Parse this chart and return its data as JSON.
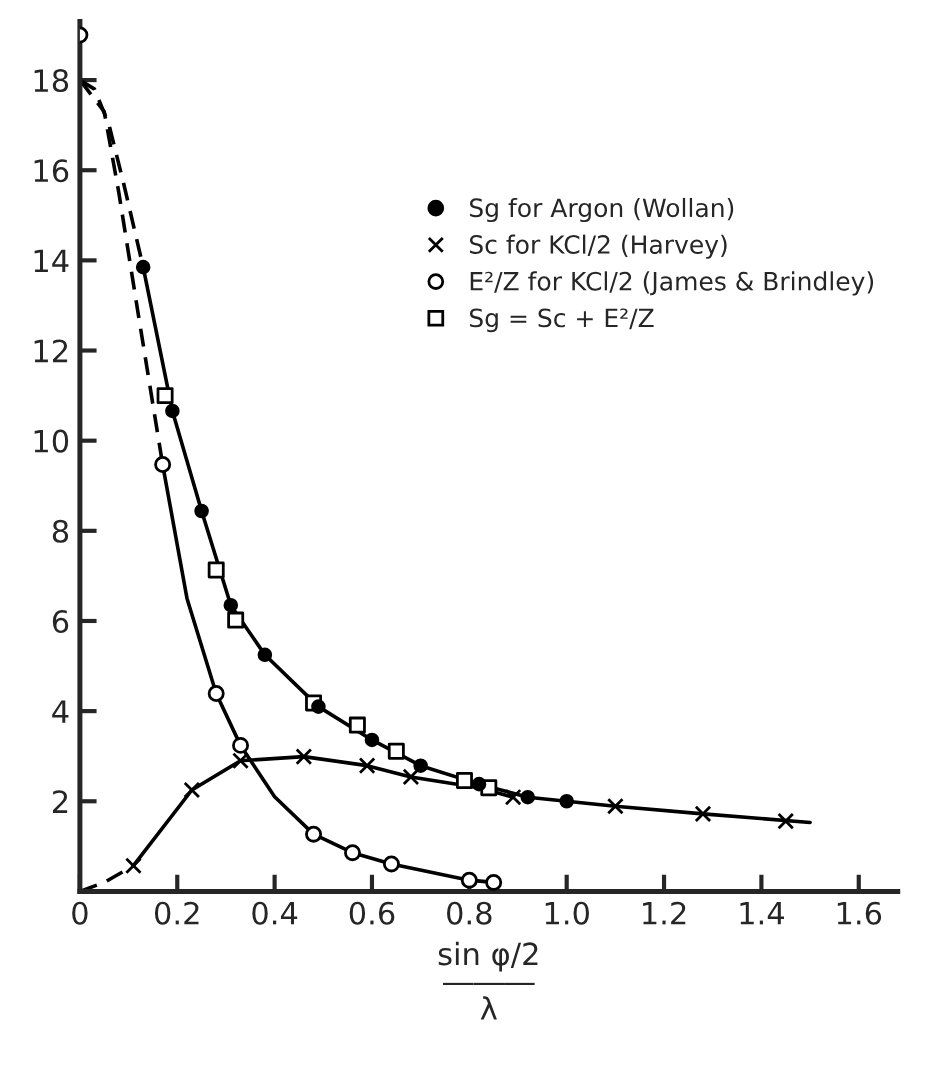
{
  "chart_data": {
    "type": "scatter",
    "xlabel": "sin φ/2\n―――\nλ",
    "xlim": [
      0,
      1.68
    ],
    "ylim": [
      0,
      19.3
    ],
    "xticks": [
      0,
      0.2,
      0.4,
      0.6,
      0.8,
      {
        "value": 1.0,
        "label": "1.0"
      },
      1.2,
      1.4,
      1.6
    ],
    "yticks": [
      2,
      4,
      6,
      8,
      10,
      12,
      14,
      16,
      18
    ],
    "grid": false,
    "legend": "center right",
    "series": [
      {
        "name": "Sg for Argon (Wollan)",
        "marker": "circle",
        "color": "#000000",
        "x": [
          0.13,
          0.19,
          0.25,
          0.31,
          0.38,
          0.49,
          0.6,
          0.7,
          0.82,
          0.92,
          1.0
        ],
        "values": [
          13.85,
          10.66,
          8.44,
          6.35,
          5.25,
          4.1,
          3.36,
          2.79,
          2.38,
          2.09,
          2.0
        ]
      },
      {
        "name": "Sc for KCl/2 (Harvey)",
        "marker": "cross",
        "color": "#000000",
        "x": [
          0.11,
          0.23,
          0.33,
          0.46,
          0.59,
          0.68,
          0.89,
          1.1,
          1.28,
          1.45
        ],
        "values": [
          0.57,
          2.25,
          2.9,
          2.99,
          2.79,
          2.54,
          2.09,
          1.89,
          1.72,
          1.56
        ]
      },
      {
        "name": "E²/Z for KCl/2 (James & Brindley)",
        "marker": "circle",
        "color": "#000000",
        "x": [
          0,
          0.17,
          0.28,
          0.33,
          0.48,
          0.56,
          0.64,
          0.8,
          0.85
        ],
        "values": [
          19.0,
          9.47,
          4.39,
          3.24,
          1.27,
          0.86,
          0.61,
          0.25,
          0.2
        ]
      },
      {
        "name": "Sg = Sc + E²/Z",
        "marker": "square",
        "color": "#000000",
        "x": [
          0.175,
          0.28,
          0.32,
          0.48,
          0.57,
          0.65,
          0.79,
          0.84
        ],
        "values": [
          11.0,
          7.13,
          6.02,
          4.18,
          3.69,
          3.11,
          2.46,
          2.3
        ]
      },
      {
        "type": "line",
        "line_style": "solid",
        "color": "#000000",
        "x": [
          0.13,
          0.19,
          0.25,
          0.31,
          0.38,
          0.49,
          0.6,
          0.7,
          0.82,
          0.92,
          1.0,
          1.1,
          1.28,
          1.5
        ],
        "values": [
          13.85,
          10.66,
          8.44,
          6.35,
          5.25,
          4.1,
          3.36,
          2.79,
          2.38,
          2.09,
          2.0,
          1.89,
          1.72,
          1.53
        ]
      },
      {
        "type": "line",
        "line_style": "dashed",
        "color": "#000000",
        "x": [
          0,
          0.03,
          0.06,
          0.09,
          0.13
        ],
        "values": [
          18.0,
          17.8,
          17.0,
          15.7,
          13.85
        ]
      },
      {
        "type": "line",
        "line_style": "solid",
        "color": "#000000",
        "x": [
          0.17,
          0.22,
          0.28,
          0.33,
          0.4,
          0.48,
          0.56,
          0.64,
          0.8,
          0.85
        ],
        "values": [
          9.47,
          6.5,
          4.39,
          3.24,
          2.1,
          1.27,
          0.86,
          0.61,
          0.25,
          0.2
        ]
      },
      {
        "type": "line",
        "line_style": "dashed",
        "color": "#000000",
        "x": [
          0,
          0.05,
          0.08,
          0.12,
          0.17
        ],
        "values": [
          18.0,
          17.3,
          15.5,
          12.8,
          9.47
        ]
      },
      {
        "type": "line",
        "line_style": "solid",
        "color": "#000000",
        "x": [
          0.11,
          0.23,
          0.33,
          0.46,
          0.59,
          0.68,
          0.82,
          0.89
        ],
        "values": [
          0.57,
          2.25,
          2.9,
          2.99,
          2.79,
          2.54,
          2.3,
          2.09
        ]
      },
      {
        "type": "line",
        "line_style": "dashed",
        "color": "#000000",
        "x": [
          0,
          0.05,
          0.11
        ],
        "values": [
          0,
          0.2,
          0.57
        ]
      }
    ]
  }
}
